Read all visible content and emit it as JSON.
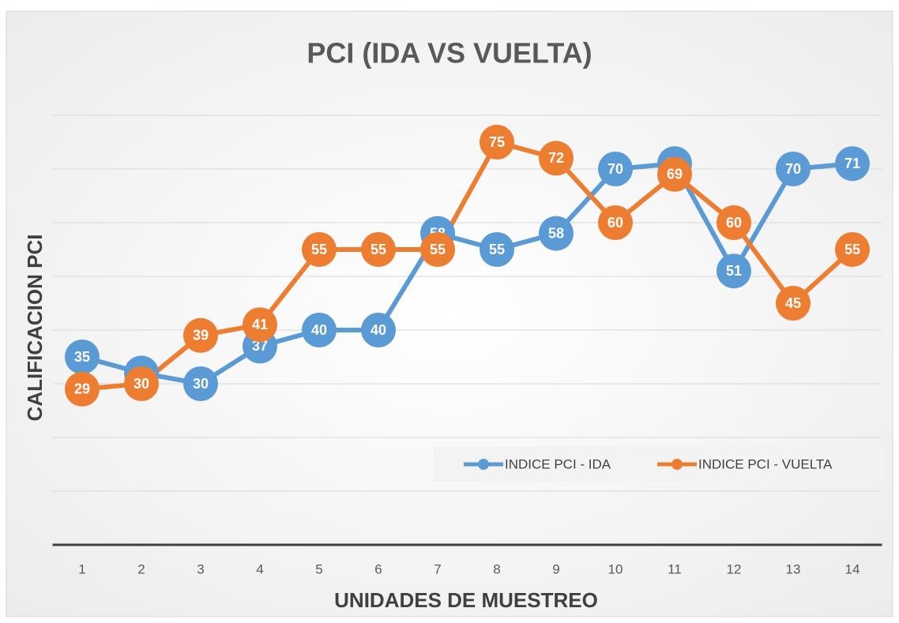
{
  "chart_data": {
    "type": "line",
    "title": "PCI (IDA VS VUELTA)",
    "x_label": "UNIDADES DE MUESTREO",
    "y_label": "CALIFICACION PCI",
    "categories": [
      1,
      2,
      3,
      4,
      5,
      6,
      7,
      8,
      9,
      10,
      11,
      12,
      13,
      14
    ],
    "series": [
      {
        "name": "INDICE PCI - IDA",
        "color": "#5b9bd5",
        "values": [
          35,
          32,
          30,
          37,
          40,
          40,
          58,
          55,
          58,
          70,
          71,
          51,
          70,
          71
        ]
      },
      {
        "name": "INDICE PCI - VUELTA",
        "color": "#ed7d31",
        "values": [
          29,
          30,
          39,
          41,
          55,
          55,
          55,
          75,
          72,
          60,
          69,
          60,
          45,
          55
        ]
      }
    ],
    "ylim": [
      0,
      80
    ],
    "yticks": [
      0,
      10,
      20,
      30,
      40,
      50,
      60,
      70,
      80
    ],
    "grid": true,
    "legend": "lower right"
  }
}
